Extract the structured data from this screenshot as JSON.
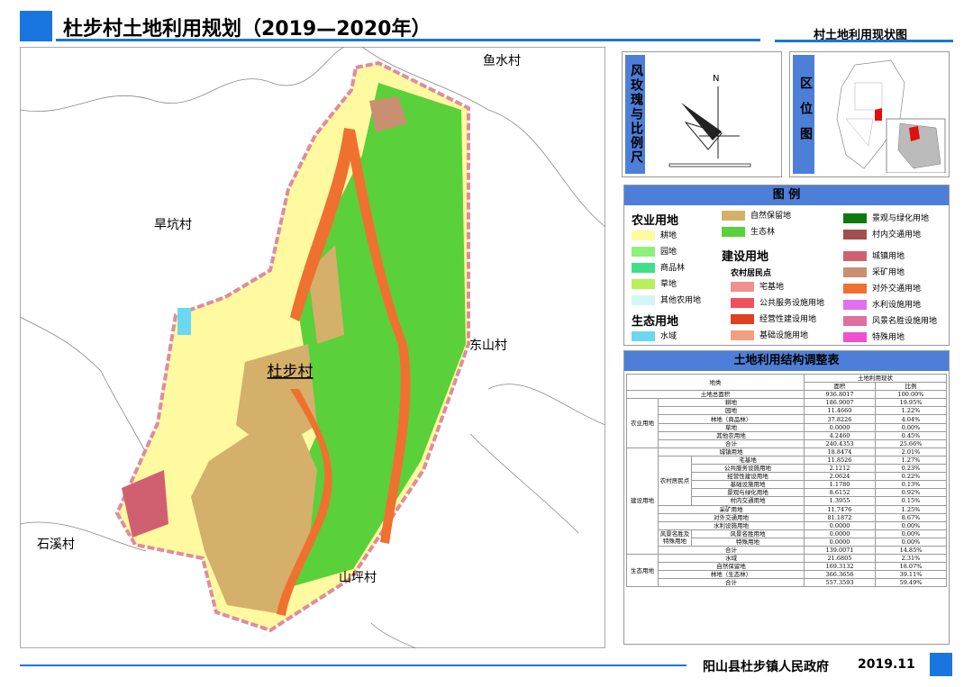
{
  "header": {
    "title": "杜步村土地利用规划（2019—2020年）",
    "subtitle": "村土地利用现状图"
  },
  "map": {
    "labels": [
      "鱼水村",
      "旱坑村",
      "东山村",
      "杜步村",
      "石溪村",
      "山坪村"
    ]
  },
  "compass": {
    "title": "风玫瑰与比例尺",
    "north": "N"
  },
  "location": {
    "title": "区位图"
  },
  "legend": {
    "title": "图 例",
    "headers": {
      "agri": "农业用地",
      "eco": "生态用地",
      "build": "建设用地",
      "rural": "农村居民点"
    },
    "items": [
      {
        "name": "耕地",
        "color": "#fff9a0"
      },
      {
        "name": "园地",
        "color": "#8ef07a"
      },
      {
        "name": "商品林",
        "color": "#3fe08a"
      },
      {
        "name": "草地",
        "color": "#b8f05a"
      },
      {
        "name": "其他农用地",
        "color": "#d2f6f6"
      },
      {
        "name": "水域",
        "color": "#6ad8f0"
      },
      {
        "name": "自然保留地",
        "color": "#d4b06a"
      },
      {
        "name": "生态林",
        "color": "#5ad03a"
      },
      {
        "name": "宅基地",
        "color": "#f09090"
      },
      {
        "name": "公共服务设施用地",
        "color": "#f05060"
      },
      {
        "name": "经营性建设用地",
        "color": "#e04020"
      },
      {
        "name": "基础设施用地",
        "color": "#f0a080"
      },
      {
        "name": "景观与绿化用地",
        "color": "#107810"
      },
      {
        "name": "村内交通用地",
        "color": "#a05050"
      },
      {
        "name": "城镇用地",
        "color": "#d06070"
      },
      {
        "name": "采矿用地",
        "color": "#c89070"
      },
      {
        "name": "对外交通用地",
        "color": "#f07030"
      },
      {
        "name": "水利设施用地",
        "color": "#e070f0"
      },
      {
        "name": "风景名胜设施用地",
        "color": "#e070a0"
      },
      {
        "name": "特殊用地",
        "color": "#f050d0"
      }
    ]
  },
  "table": {
    "title": "土地利用结构调整表",
    "head": {
      "kind": "地类",
      "status": "土地利用现状",
      "area": "面积",
      "ratio": "比例"
    },
    "total": {
      "name": "土地总面积",
      "area": "936.8017",
      "ratio": "100.00%"
    },
    "groups": [
      {
        "label": "农业用地",
        "rows": [
          {
            "name": "耕地",
            "area": "186.9007",
            "ratio": "19.95%"
          },
          {
            "name": "园地",
            "area": "11.4660",
            "ratio": "1.22%"
          },
          {
            "name": "林地（商品林）",
            "area": "37.8226",
            "ratio": "4.04%"
          },
          {
            "name": "草地",
            "area": "0.0000",
            "ratio": "0.00%"
          },
          {
            "name": "其他农用地",
            "area": "4.2460",
            "ratio": "0.45%"
          },
          {
            "name": "合计",
            "area": "240.4353",
            "ratio": "25.66%"
          }
        ]
      },
      {
        "label": "建设用地",
        "rows": [
          {
            "name": "城镇用地",
            "area": "18.8474",
            "ratio": "2.01%"
          },
          {
            "label": "农村居民点",
            "rows": [
              {
                "name": "宅基地",
                "area": "11.8526",
                "ratio": "1.27%"
              },
              {
                "name": "公共服务设施用地",
                "area": "2.1212",
                "ratio": "0.23%"
              },
              {
                "name": "经营性建设用地",
                "area": "2.0624",
                "ratio": "0.22%"
              },
              {
                "name": "基础设施用地",
                "area": "1.1780",
                "ratio": "0.13%"
              },
              {
                "name": "景观与绿化用地",
                "area": "8.6152",
                "ratio": "0.92%"
              },
              {
                "name": "村内交通用地",
                "area": "1.3955",
                "ratio": "0.15%"
              }
            ]
          },
          {
            "name": "采矿用地",
            "area": "11.7476",
            "ratio": "1.25%"
          },
          {
            "name": "对外交通用地",
            "area": "81.1872",
            "ratio": "8.67%"
          },
          {
            "name": "水利设施用地",
            "area": "0.0000",
            "ratio": "0.00%"
          },
          {
            "label": "风景名胜及特殊用地",
            "rows": [
              {
                "name": "风景名胜用地",
                "area": "0.0000",
                "ratio": "0.00%"
              },
              {
                "name": "特殊用地",
                "area": "0.0000",
                "ratio": "0.00%"
              }
            ]
          },
          {
            "name": "合计",
            "area": "139.0071",
            "ratio": "14.85%"
          }
        ]
      },
      {
        "label": "生态用地",
        "rows": [
          {
            "name": "水域",
            "area": "21.6805",
            "ratio": "2.31%"
          },
          {
            "name": "自然保留地",
            "area": "169.3132",
            "ratio": "18.07%"
          },
          {
            "name": "林地（生态林）",
            "area": "366.3656",
            "ratio": "39.11%"
          },
          {
            "name": "合计",
            "area": "557.3593",
            "ratio": "59.49%"
          }
        ]
      }
    ]
  },
  "footer": {
    "org": "阳山县杜步镇人民政府",
    "date": "2019.11"
  }
}
